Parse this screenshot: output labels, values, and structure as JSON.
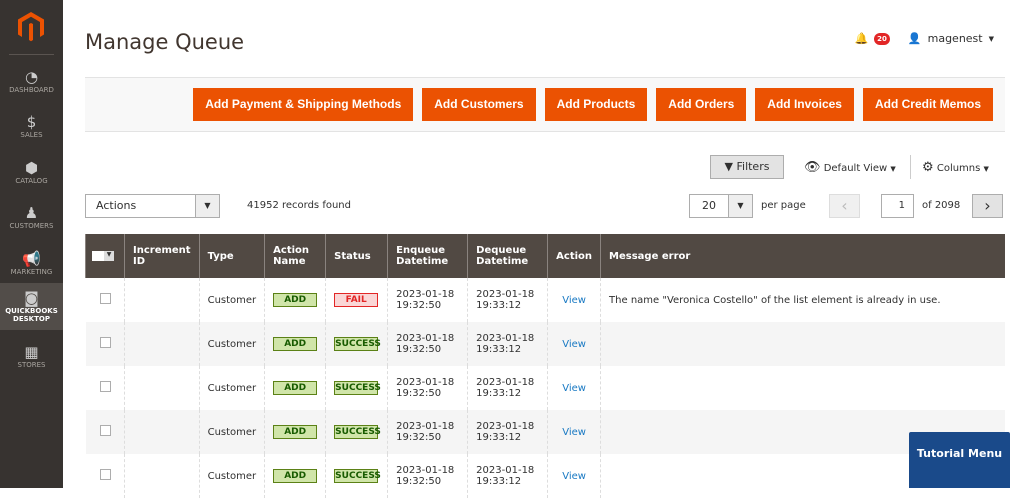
{
  "sidebar": {
    "items": [
      {
        "label": "DASHBOARD",
        "icon": "gauge-icon"
      },
      {
        "label": "SALES",
        "icon": "dollar-icon"
      },
      {
        "label": "CATALOG",
        "icon": "box-icon"
      },
      {
        "label": "CUSTOMERS",
        "icon": "person-icon"
      },
      {
        "label": "MARKETING",
        "icon": "megaphone-icon"
      },
      {
        "label": "QUICKBOOKS DESKTOP",
        "icon": "quickbooks-icon",
        "active": true
      },
      {
        "label": "STORES",
        "icon": "store-icon"
      }
    ]
  },
  "header": {
    "title": "Manage Queue",
    "notifications": "20",
    "user": "magenest"
  },
  "buttons": [
    "Add Payment & Shipping Methods",
    "Add Customers",
    "Add Products",
    "Add Orders",
    "Add Invoices",
    "Add Credit Memos"
  ],
  "toolbar": {
    "filters": "Filters",
    "view": "Default View",
    "columns": "Columns",
    "actions": "Actions",
    "records": "41952 records found",
    "per_page_value": "20",
    "per_page_label": "per page",
    "page": "1",
    "of": "of 2098"
  },
  "table": {
    "headers": [
      "Increment ID",
      "Type",
      "Action Name",
      "Status",
      "Enqueue Datetime",
      "Dequeue Datetime",
      "Action",
      "Message error"
    ],
    "rows": [
      {
        "id": "",
        "type": "Customer",
        "action": "ADD",
        "status": "FAIL",
        "enq_date": "2023-01-18",
        "enq_time": "19:32:50",
        "deq_date": "2023-01-18",
        "deq_time": "19:33:12",
        "link": "View",
        "error": "The name \"Veronica Costello\" of the list element is already in use."
      },
      {
        "id": "",
        "type": "Customer",
        "action": "ADD",
        "status": "SUCCESS",
        "enq_date": "2023-01-18",
        "enq_time": "19:32:50",
        "deq_date": "2023-01-18",
        "deq_time": "19:33:12",
        "link": "View",
        "error": ""
      },
      {
        "id": "",
        "type": "Customer",
        "action": "ADD",
        "status": "SUCCESS",
        "enq_date": "2023-01-18",
        "enq_time": "19:32:50",
        "deq_date": "2023-01-18",
        "deq_time": "19:33:12",
        "link": "View",
        "error": ""
      },
      {
        "id": "",
        "type": "Customer",
        "action": "ADD",
        "status": "SUCCESS",
        "enq_date": "2023-01-18",
        "enq_time": "19:32:50",
        "deq_date": "2023-01-18",
        "deq_time": "19:33:12",
        "link": "View",
        "error": ""
      },
      {
        "id": "",
        "type": "Customer",
        "action": "ADD",
        "status": "SUCCESS",
        "enq_date": "2023-01-18",
        "enq_time": "19:32:50",
        "deq_date": "2023-01-18",
        "deq_time": "19:33:12",
        "link": "View",
        "error": ""
      }
    ]
  },
  "tutorial": "Tutorial Menu",
  "colors": {
    "accent": "#eb5202",
    "sidebar": "#373330",
    "header": "#514943"
  }
}
